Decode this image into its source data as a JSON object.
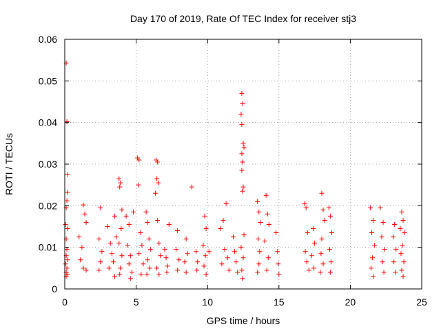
{
  "chart_data": {
    "type": "scatter",
    "title": "Day 170 of 2019, Rate Of TEC Index for receiver stj3",
    "xlabel": "GPS time / hours",
    "ylabel": "ROTI / TECUs",
    "xlim": [
      0,
      25
    ],
    "ylim": [
      0,
      0.06
    ],
    "xticks": [
      0,
      5,
      10,
      15,
      20,
      25
    ],
    "yticks": [
      0,
      0.01,
      0.02,
      0.03,
      0.04,
      0.05,
      0.06
    ],
    "xtick_labels": [
      "0",
      "5",
      "10",
      "15",
      "20",
      "25"
    ],
    "ytick_labels": [
      "0",
      "0.01",
      "0.02",
      "0.03",
      "0.04",
      "0.05",
      "0.06"
    ],
    "grid": true,
    "marker": "+",
    "color": "#ff0000",
    "series": [
      {
        "name": "ROTI",
        "points": [
          [
            0.1,
            0.0543
          ],
          [
            0.15,
            0.0402
          ],
          [
            0.2,
            0.0275
          ],
          [
            0.2,
            0.0232
          ],
          [
            0.15,
            0.0212
          ],
          [
            0.1,
            0.0195
          ],
          [
            0.05,
            0.0155
          ],
          [
            0.2,
            0.0145
          ],
          [
            0.1,
            0.012
          ],
          [
            0.15,
            0.0095
          ],
          [
            0.1,
            0.008
          ],
          [
            0.2,
            0.007
          ],
          [
            0.05,
            0.006
          ],
          [
            0.15,
            0.005
          ],
          [
            0.1,
            0.004
          ],
          [
            0.2,
            0.0035
          ],
          [
            0.1,
            0.003
          ],
          [
            1.0,
            0.0125
          ],
          [
            1.3,
            0.0202
          ],
          [
            1.4,
            0.018
          ],
          [
            1.5,
            0.016
          ],
          [
            1.2,
            0.01
          ],
          [
            1.1,
            0.007
          ],
          [
            1.3,
            0.005
          ],
          [
            1.5,
            0.0045
          ],
          [
            2.5,
            0.0195
          ],
          [
            2.4,
            0.012
          ],
          [
            2.6,
            0.009
          ],
          [
            2.5,
            0.0065
          ],
          [
            2.4,
            0.0045
          ],
          [
            3.0,
            0.015
          ],
          [
            3.2,
            0.011
          ],
          [
            3.3,
            0.0085
          ],
          [
            3.5,
            0.0175
          ],
          [
            3.6,
            0.0125
          ],
          [
            3.4,
            0.0065
          ],
          [
            3.1,
            0.005
          ],
          [
            3.5,
            0.003
          ],
          [
            3.8,
            0.0265
          ],
          [
            3.9,
            0.0255
          ],
          [
            3.85,
            0.0245
          ],
          [
            4.0,
            0.019
          ],
          [
            3.95,
            0.0145
          ],
          [
            3.8,
            0.011
          ],
          [
            4.0,
            0.008
          ],
          [
            3.9,
            0.005
          ],
          [
            3.85,
            0.0035
          ],
          [
            4.3,
            0.0175
          ],
          [
            4.5,
            0.0155
          ],
          [
            4.4,
            0.0105
          ],
          [
            4.6,
            0.008
          ],
          [
            4.5,
            0.006
          ],
          [
            4.7,
            0.004
          ],
          [
            4.8,
            0.0185
          ],
          [
            4.6,
            0.0025
          ],
          [
            5.1,
            0.0315
          ],
          [
            5.2,
            0.031
          ],
          [
            5.15,
            0.025
          ],
          [
            5.3,
            0.0135
          ],
          [
            5.4,
            0.0105
          ],
          [
            5.2,
            0.0085
          ],
          [
            5.5,
            0.006
          ],
          [
            5.35,
            0.0035
          ],
          [
            5.7,
            0.0185
          ],
          [
            5.8,
            0.016
          ],
          [
            5.9,
            0.012
          ],
          [
            6.0,
            0.0095
          ],
          [
            5.8,
            0.007
          ],
          [
            5.95,
            0.005
          ],
          [
            5.75,
            0.0035
          ],
          [
            6.4,
            0.031
          ],
          [
            6.5,
            0.0305
          ],
          [
            6.45,
            0.0265
          ],
          [
            6.55,
            0.0255
          ],
          [
            6.35,
            0.023
          ],
          [
            6.5,
            0.0165
          ],
          [
            6.6,
            0.011
          ],
          [
            6.7,
            0.008
          ],
          [
            6.45,
            0.005
          ],
          [
            6.6,
            0.0035
          ],
          [
            7.0,
            0.0095
          ],
          [
            7.1,
            0.0075
          ],
          [
            7.2,
            0.0055
          ],
          [
            7.3,
            0.0155
          ],
          [
            7.15,
            0.004
          ],
          [
            7.9,
            0.014
          ],
          [
            7.8,
            0.0095
          ],
          [
            8.0,
            0.007
          ],
          [
            7.9,
            0.0045
          ],
          [
            8.5,
            0.012
          ],
          [
            8.6,
            0.0085
          ],
          [
            8.4,
            0.0065
          ],
          [
            8.5,
            0.004
          ],
          [
            8.9,
            0.0245
          ],
          [
            9.2,
            0.009
          ],
          [
            9.3,
            0.0065
          ],
          [
            9.25,
            0.0045
          ],
          [
            9.8,
            0.0175
          ],
          [
            9.9,
            0.0145
          ],
          [
            9.7,
            0.0105
          ],
          [
            9.85,
            0.008
          ],
          [
            9.75,
            0.0055
          ],
          [
            9.9,
            0.0035
          ],
          [
            10.1,
            0.009
          ],
          [
            10.9,
            0.0145
          ],
          [
            11.1,
            0.0165
          ],
          [
            11.3,
            0.0205
          ],
          [
            11.2,
            0.0095
          ],
          [
            11.4,
            0.0075
          ],
          [
            11.0,
            0.006
          ],
          [
            11.5,
            0.0045
          ],
          [
            11.8,
            0.0125
          ],
          [
            11.9,
            0.009
          ],
          [
            12.0,
            0.0065
          ],
          [
            12.1,
            0.004
          ],
          [
            12.4,
            0.047
          ],
          [
            12.45,
            0.0445
          ],
          [
            12.35,
            0.042
          ],
          [
            12.4,
            0.0395
          ],
          [
            12.5,
            0.035
          ],
          [
            12.55,
            0.034
          ],
          [
            12.4,
            0.0325
          ],
          [
            12.45,
            0.0305
          ],
          [
            12.4,
            0.0285
          ],
          [
            12.5,
            0.0245
          ],
          [
            12.45,
            0.0235
          ],
          [
            12.55,
            0.013
          ],
          [
            12.35,
            0.01
          ],
          [
            12.5,
            0.0075
          ],
          [
            12.4,
            0.0045
          ],
          [
            12.45,
            0.0025
          ],
          [
            13.5,
            0.021
          ],
          [
            13.6,
            0.0185
          ],
          [
            13.7,
            0.016
          ],
          [
            13.55,
            0.012
          ],
          [
            13.65,
            0.009
          ],
          [
            13.6,
            0.006
          ],
          [
            13.5,
            0.004
          ],
          [
            14.1,
            0.0225
          ],
          [
            14.2,
            0.018
          ],
          [
            14.3,
            0.0155
          ],
          [
            14.0,
            0.0115
          ],
          [
            14.25,
            0.0075
          ],
          [
            14.15,
            0.0045
          ],
          [
            14.8,
            0.0135
          ],
          [
            14.9,
            0.009
          ],
          [
            14.95,
            0.006
          ],
          [
            15.0,
            0.0035
          ],
          [
            16.8,
            0.0205
          ],
          [
            16.9,
            0.0195
          ],
          [
            17.0,
            0.0135
          ],
          [
            16.85,
            0.009
          ],
          [
            16.95,
            0.0065
          ],
          [
            17.1,
            0.0045
          ],
          [
            17.4,
            0.0145
          ],
          [
            17.5,
            0.011
          ],
          [
            17.3,
            0.008
          ],
          [
            17.45,
            0.005
          ],
          [
            18.0,
            0.023
          ],
          [
            18.1,
            0.019
          ],
          [
            18.2,
            0.0165
          ],
          [
            18.0,
            0.012
          ],
          [
            17.95,
            0.0085
          ],
          [
            18.1,
            0.006
          ],
          [
            17.9,
            0.004
          ],
          [
            18.5,
            0.0195
          ],
          [
            18.6,
            0.0175
          ],
          [
            18.7,
            0.0135
          ],
          [
            18.55,
            0.0095
          ],
          [
            18.65,
            0.0065
          ],
          [
            18.6,
            0.004
          ],
          [
            21.4,
            0.0195
          ],
          [
            21.6,
            0.0165
          ],
          [
            21.5,
            0.0135
          ],
          [
            21.7,
            0.0105
          ],
          [
            21.55,
            0.0075
          ],
          [
            21.45,
            0.005
          ],
          [
            21.6,
            0.003
          ],
          [
            22.1,
            0.0195
          ],
          [
            22.3,
            0.016
          ],
          [
            22.2,
            0.0125
          ],
          [
            22.4,
            0.0095
          ],
          [
            22.25,
            0.0065
          ],
          [
            22.35,
            0.004
          ],
          [
            23.1,
            0.0155
          ],
          [
            23.0,
            0.0125
          ],
          [
            23.2,
            0.0095
          ],
          [
            23.05,
            0.0065
          ],
          [
            23.15,
            0.004
          ],
          [
            23.6,
            0.0185
          ],
          [
            23.7,
            0.0165
          ],
          [
            23.5,
            0.0145
          ],
          [
            23.8,
            0.0135
          ],
          [
            23.65,
            0.0105
          ],
          [
            23.55,
            0.0085
          ],
          [
            23.75,
            0.0065
          ],
          [
            23.6,
            0.0045
          ],
          [
            23.7,
            0.003
          ]
        ]
      }
    ]
  }
}
